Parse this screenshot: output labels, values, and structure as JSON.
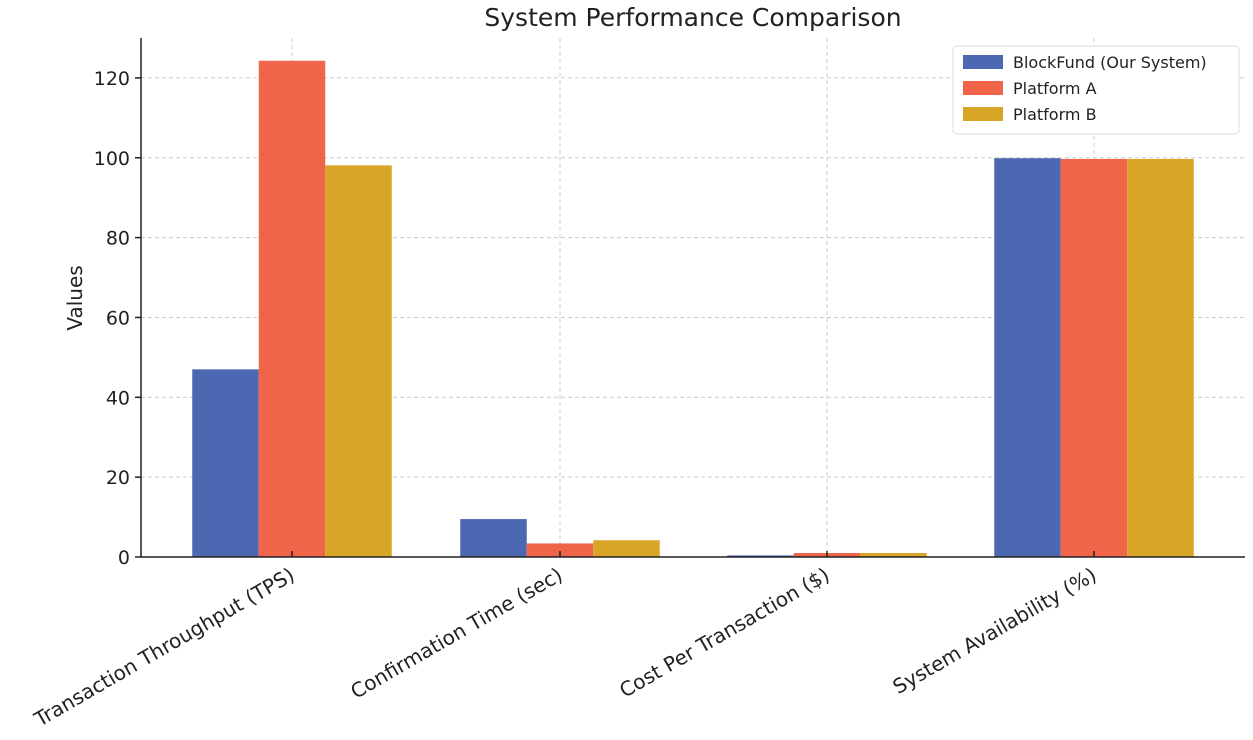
{
  "chart_data": {
    "type": "bar",
    "title": "System Performance Comparison",
    "xlabel": "",
    "ylabel": "Values",
    "ylim": [
      0,
      130
    ],
    "yticks": [
      0,
      20,
      40,
      60,
      80,
      100,
      120
    ],
    "grid": true,
    "legend_position": "top-right",
    "categories": [
      "Transaction Throughput (TPS)",
      "Confirmation Time (sec)",
      "Cost Per Transaction ($)",
      "System Availability (%)"
    ],
    "series": [
      {
        "name": "BlockFund (Our System)",
        "color": "#4c68b3",
        "values": [
          47,
          9.5,
          0.4,
          99.9
        ]
      },
      {
        "name": "Platform A",
        "color": "#f0644a",
        "values": [
          124.3,
          3.4,
          1.0,
          99.7
        ]
      },
      {
        "name": "Platform B",
        "color": "#d9a527",
        "values": [
          98.1,
          4.2,
          1.0,
          99.7
        ]
      }
    ]
  }
}
